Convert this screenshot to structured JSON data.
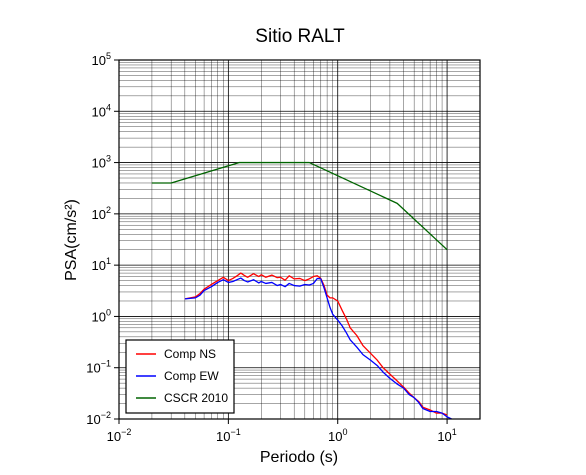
{
  "chart_data": {
    "type": "line",
    "title": "Sitio RALT",
    "xlabel": "Periodo (s)",
    "ylabel": "PSA(cm/s²)",
    "x_scale": "log",
    "y_scale": "log",
    "xlim": [
      0.01,
      20
    ],
    "ylim": [
      0.01,
      100000
    ],
    "x_ticks": [
      {
        "base": "10",
        "exp": "−2"
      },
      {
        "base": "10",
        "exp": "−1"
      },
      {
        "base": "10",
        "exp": "0"
      },
      {
        "base": "10",
        "exp": "1"
      }
    ],
    "y_ticks": [
      {
        "base": "10",
        "exp": "−2"
      },
      {
        "base": "10",
        "exp": "−1"
      },
      {
        "base": "10",
        "exp": "0"
      },
      {
        "base": "10",
        "exp": "1"
      },
      {
        "base": "10",
        "exp": "2"
      },
      {
        "base": "10",
        "exp": "3"
      },
      {
        "base": "10",
        "exp": "4"
      },
      {
        "base": "10",
        "exp": "5"
      }
    ],
    "grid": true,
    "legend_position": "bottom-left",
    "series": [
      {
        "name": "Comp NS",
        "color": "#ff0000",
        "x": [
          0.04,
          0.05,
          0.055,
          0.06,
          0.07,
          0.08,
          0.09,
          0.1,
          0.11,
          0.12,
          0.13,
          0.14,
          0.15,
          0.17,
          0.19,
          0.2,
          0.22,
          0.25,
          0.28,
          0.3,
          0.33,
          0.36,
          0.4,
          0.45,
          0.5,
          0.55,
          0.6,
          0.65,
          0.7,
          0.75,
          0.8,
          0.85,
          0.9,
          1.0,
          1.1,
          1.2,
          1.3,
          1.5,
          1.7,
          2.0,
          2.3,
          2.6,
          3.0,
          3.5,
          4.0,
          4.5,
          5.0,
          5.5,
          6.0,
          7.0,
          8.0,
          9.0,
          10.0
        ],
        "values": [
          2.2,
          2.4,
          2.8,
          3.4,
          4.2,
          5.0,
          5.8,
          5.0,
          5.5,
          6.2,
          7.0,
          6.3,
          5.8,
          6.8,
          6.0,
          6.5,
          5.8,
          6.4,
          5.7,
          5.8,
          5.1,
          6.2,
          5.4,
          5.5,
          5.0,
          5.4,
          6.0,
          6.2,
          5.5,
          4.0,
          2.6,
          2.3,
          2.3,
          2.0,
          1.3,
          0.9,
          0.6,
          0.42,
          0.27,
          0.19,
          0.14,
          0.1,
          0.075,
          0.055,
          0.042,
          0.032,
          0.026,
          0.022,
          0.017,
          0.015,
          0.013,
          0.013,
          0.012
        ]
      },
      {
        "name": "Comp EW",
        "color": "#0000ff",
        "x": [
          0.04,
          0.05,
          0.055,
          0.06,
          0.07,
          0.08,
          0.09,
          0.1,
          0.11,
          0.12,
          0.13,
          0.14,
          0.15,
          0.17,
          0.19,
          0.2,
          0.22,
          0.25,
          0.28,
          0.3,
          0.33,
          0.36,
          0.4,
          0.45,
          0.5,
          0.55,
          0.6,
          0.65,
          0.7,
          0.75,
          0.8,
          0.85,
          0.9,
          1.0,
          1.1,
          1.2,
          1.3,
          1.5,
          1.7,
          2.0,
          2.3,
          2.6,
          3.0,
          3.5,
          4.0,
          4.5,
          5.0,
          5.5,
          6.0,
          7.0,
          8.0,
          9.0,
          10.0,
          11.0
        ],
        "values": [
          2.2,
          2.3,
          2.6,
          3.2,
          3.8,
          4.6,
          5.2,
          4.6,
          4.8,
          5.2,
          5.6,
          5.0,
          4.7,
          5.2,
          4.5,
          4.8,
          4.4,
          4.6,
          4.0,
          4.2,
          3.8,
          4.4,
          4.0,
          3.9,
          4.2,
          4.1,
          4.4,
          5.5,
          5.4,
          3.6,
          2.3,
          1.5,
          1.1,
          0.85,
          0.65,
          0.48,
          0.35,
          0.25,
          0.18,
          0.14,
          0.11,
          0.082,
          0.062,
          0.048,
          0.04,
          0.03,
          0.026,
          0.021,
          0.016,
          0.014,
          0.014,
          0.013,
          0.011,
          0.01
        ]
      },
      {
        "name": "CSCR 2010",
        "color": "#006400",
        "x": [
          0.02,
          0.03,
          0.125,
          0.55,
          3.5,
          10.0
        ],
        "values": [
          400,
          400,
          1000,
          1000,
          160,
          20
        ]
      }
    ]
  }
}
